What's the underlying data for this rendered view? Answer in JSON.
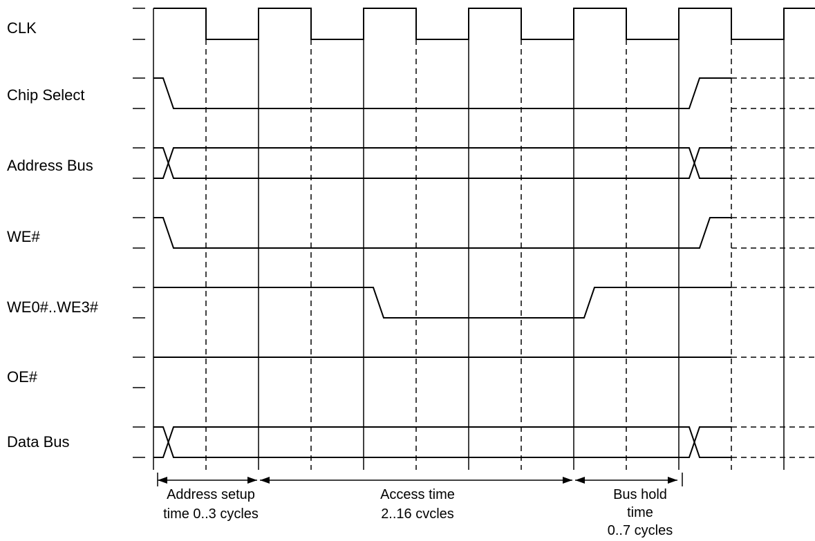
{
  "signals": [
    {
      "label": "CLK"
    },
    {
      "label": "Chip Select"
    },
    {
      "label": "Address Bus"
    },
    {
      "label": "WE#"
    },
    {
      "label": "WE0#..WE3#"
    },
    {
      "label": "OE#"
    },
    {
      "label": "Data Bus"
    }
  ],
  "annotations": {
    "address_setup": [
      "Address setup",
      "time 0..3 cycles"
    ],
    "access_time": [
      "Access time",
      "2..16 cvcles"
    ],
    "bus_hold": [
      "Bus hold",
      "time",
      "0..7 cycles"
    ]
  }
}
